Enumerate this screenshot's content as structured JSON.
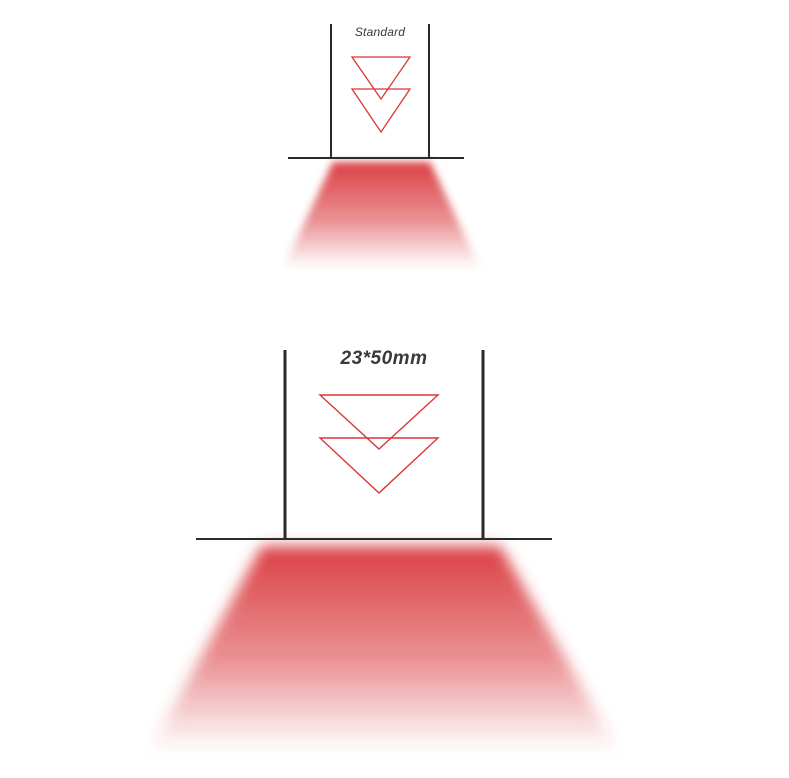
{
  "standard": {
    "label": "Standard",
    "icon": "double-chevron-down-icon"
  },
  "large": {
    "label": "23*50mm",
    "icon": "double-chevron-down-icon"
  },
  "colors": {
    "accent": "#d9363b",
    "line": "#2b2b2b",
    "label": "#3a3a3a",
    "background": "#ffffff"
  }
}
